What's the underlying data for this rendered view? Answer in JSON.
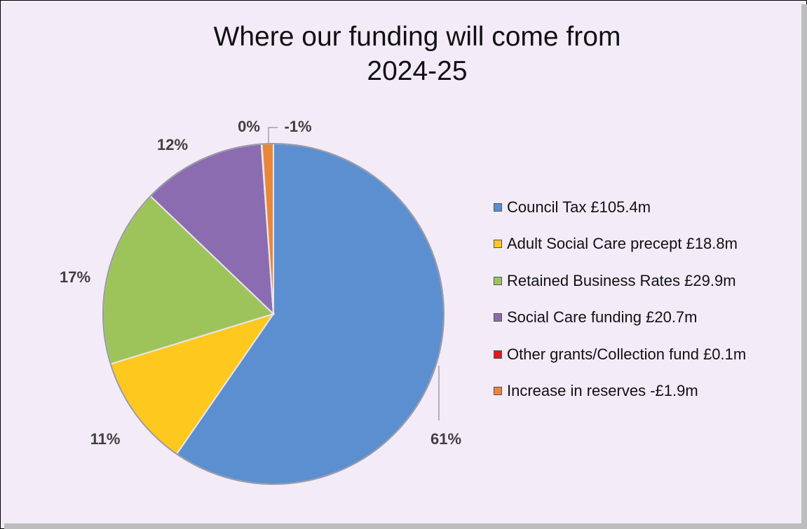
{
  "chart_data": {
    "type": "pie",
    "title_lines": [
      "Where our funding will come from",
      "2024-25"
    ],
    "categories": [
      "Council Tax £105.4m",
      "Adult Social Care precept £18.8m",
      "Retained Business Rates £29.9m",
      "Social Care funding £20.7m",
      "Other grants/Collection fund £0.1m",
      "Increase in reserves -£1.9m"
    ],
    "values": [
      105.4,
      18.8,
      29.9,
      20.7,
      0.1,
      1.9
    ],
    "labels": [
      "61%",
      "11%",
      "17%",
      "12%",
      "0%",
      "-1%"
    ],
    "colors": [
      "#5b8fd0",
      "#ffc81e",
      "#9dc45b",
      "#8c6cb0",
      "#e01b1b",
      "#e8873a"
    ],
    "legend_position": "right"
  }
}
